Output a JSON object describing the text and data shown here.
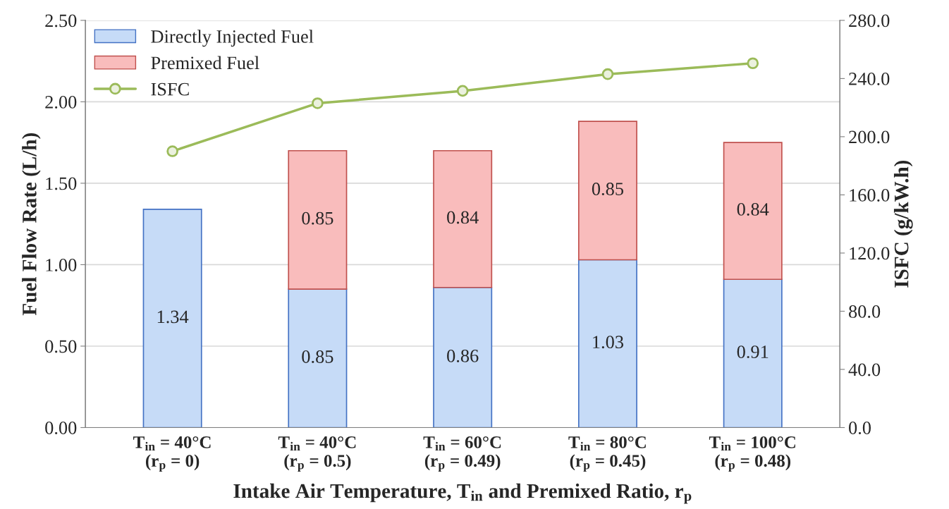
{
  "chart_data": {
    "type": "bar",
    "stacked": true,
    "xlabel": "Intake Air Temperature, T$_{in}$ and Premixed Ratio, r$_{p}$",
    "ylabel": "Fuel Flow Rate (L/h)",
    "y2label": "ISFC (g/kW.h)",
    "categories": [
      "T$_{in}$ = 40°C\n(r$_{p}$ = 0)",
      "T$_{in}$ = 40°C\n(r$_{p}$ = 0.5)",
      "T$_{in}$ = 60°C\n(r$_{p}$ = 0.49)",
      "T$_{in}$ = 80°C\n(r$_{p}$ = 0.45)",
      "T$_{in}$ = 100°C\n(r$_{p}$ = 0.48)"
    ],
    "series": [
      {
        "name": "Directly Injected Fuel",
        "color": "#c6dbf7",
        "values": [
          1.34,
          0.85,
          0.86,
          1.03,
          0.91
        ],
        "value_labels": [
          "1.34",
          "0.85",
          "0.86",
          "1.03",
          "0.91"
        ]
      },
      {
        "name": "Premixed Fuel",
        "color": "#f9bcbc",
        "values": [
          null,
          0.85,
          0.84,
          0.85,
          0.84
        ],
        "value_labels": [
          null,
          "0.85",
          "0.84",
          "0.85",
          "0.84"
        ]
      },
      {
        "name": "ISFC",
        "type": "line",
        "axis": "y2",
        "color": "#9bbb59",
        "values": [
          190,
          223,
          231.5,
          243,
          250.5
        ]
      }
    ],
    "marker": "circle",
    "grid": "y",
    "legend": "top left",
    "ylim": [
      0,
      2.5
    ],
    "yticks": [
      {
        "value": 0,
        "label": "0.00"
      },
      {
        "value": 0.5,
        "label": "0.50"
      },
      {
        "value": 1,
        "label": "1.00"
      },
      {
        "value": 1.5,
        "label": "1.50"
      },
      {
        "value": 2,
        "label": "2.00"
      },
      {
        "value": 2.5,
        "label": "2.50"
      }
    ],
    "y2lim": [
      0,
      280
    ],
    "y2ticks": [
      {
        "value": 0,
        "label": "0.0"
      },
      {
        "value": 40,
        "label": "40.0"
      },
      {
        "value": 80,
        "label": "80.0"
      },
      {
        "value": 120,
        "label": "120.0"
      },
      {
        "value": 160,
        "label": "160.0"
      },
      {
        "value": 200,
        "label": "200.0"
      },
      {
        "value": 240,
        "label": "240.0"
      },
      {
        "value": 280,
        "label": "280.0"
      }
    ]
  }
}
